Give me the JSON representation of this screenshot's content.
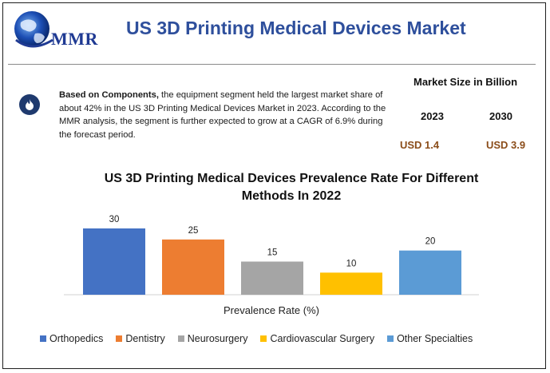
{
  "header": {
    "logo_text": "MMR",
    "title": "US 3D Printing Medical Devices Market"
  },
  "summary": {
    "icon": "flame-icon",
    "bold_lead": "Based on Components,",
    "text": " the equipment segment held the largest market share of about 42% in the US 3D Printing Medical Devices Market in 2023. According to the MMR analysis, the segment is further expected to grow at a CAGR of 6.9% during the forecast period."
  },
  "market_size": {
    "title": "Market Size in Billion",
    "year_1": "2023",
    "year_2": "2030",
    "value_1": "USD 1.4",
    "value_2": "USD 3.9"
  },
  "chart_data": {
    "type": "bar",
    "title": "US 3D Printing Medical Devices Prevalence Rate For Different Methods In 2022",
    "xlabel": "Prevalence Rate (%)",
    "ylabel": "",
    "categories": [
      "Orthopedics",
      "Dentistry",
      "Neurosurgery",
      "Cardiovascular Surgery",
      "Other Specialties"
    ],
    "values": [
      30,
      25,
      15,
      10,
      20
    ],
    "colors": [
      "#4472c4",
      "#ed7d31",
      "#a5a5a5",
      "#ffc000",
      "#5b9bd5"
    ],
    "ylim": [
      0,
      30
    ],
    "grid": false,
    "data_labels": true,
    "legend_position": "bottom"
  }
}
